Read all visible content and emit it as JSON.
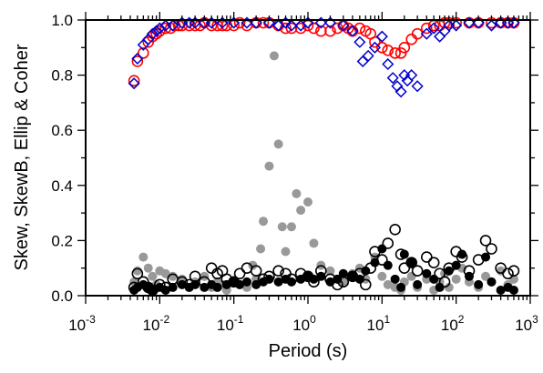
{
  "chart_data": {
    "type": "scatter",
    "xlabel": "Period (s)",
    "ylabel": "Skew, SkewB, Ellip & Coher",
    "xscale": "log",
    "xlim": [
      0.001,
      1000
    ],
    "ylim": [
      0,
      1.0
    ],
    "x_ticks": [
      {
        "base": "10",
        "exp": "-3"
      },
      {
        "base": "10",
        "exp": "-2"
      },
      {
        "base": "10",
        "exp": "-1"
      },
      {
        "base": "10",
        "exp": "0"
      },
      {
        "base": "10",
        "exp": "1"
      },
      {
        "base": "10",
        "exp": "2"
      },
      {
        "base": "10",
        "exp": "3"
      }
    ],
    "y_ticks": [
      "0.0",
      "0.2",
      "0.4",
      "0.6",
      "0.8",
      "1.0"
    ],
    "grid": false,
    "series": [
      {
        "marker": "open-circle",
        "color": "#ff0000",
        "x": [
          0.0045,
          0.005,
          0.006,
          0.007,
          0.008,
          0.009,
          0.01,
          0.012,
          0.014,
          0.016,
          0.018,
          0.02,
          0.025,
          0.03,
          0.035,
          0.04,
          0.05,
          0.06,
          0.07,
          0.08,
          0.1,
          0.12,
          0.15,
          0.2,
          0.25,
          0.3,
          0.4,
          0.5,
          0.6,
          0.8,
          1.0,
          1.2,
          1.5,
          2.0,
          2.5,
          3.0,
          3.5,
          4.0,
          5.0,
          6.0,
          7.0,
          8.0,
          10,
          12,
          15,
          18,
          20,
          25,
          30,
          40,
          50,
          60,
          70,
          80,
          100,
          150,
          200,
          300,
          400,
          500,
          600
        ],
        "y": [
          0.78,
          0.85,
          0.88,
          0.92,
          0.94,
          0.95,
          0.96,
          0.97,
          0.97,
          0.98,
          0.98,
          0.98,
          0.98,
          0.98,
          0.98,
          0.99,
          0.98,
          0.98,
          0.98,
          0.98,
          0.98,
          0.99,
          0.98,
          0.99,
          0.99,
          0.99,
          0.98,
          0.97,
          0.97,
          0.97,
          0.98,
          0.97,
          0.96,
          0.96,
          0.97,
          0.98,
          0.97,
          0.96,
          0.97,
          0.96,
          0.95,
          0.92,
          0.9,
          0.89,
          0.88,
          0.88,
          0.9,
          0.93,
          0.95,
          0.97,
          0.98,
          0.98,
          0.99,
          0.99,
          0.99,
          0.99,
          0.99,
          0.99,
          0.99,
          0.99,
          0.99
        ]
      },
      {
        "marker": "open-diamond",
        "color": "#0000cc",
        "x": [
          0.0045,
          0.005,
          0.006,
          0.007,
          0.008,
          0.009,
          0.01,
          0.012,
          0.015,
          0.02,
          0.025,
          0.03,
          0.04,
          0.05,
          0.07,
          0.1,
          0.15,
          0.2,
          0.3,
          0.4,
          0.5,
          0.6,
          0.8,
          1.0,
          1.5,
          2.0,
          3.0,
          4.0,
          5.0,
          5.5,
          6.5,
          8.0,
          10,
          12,
          14,
          16,
          18,
          20,
          22,
          25,
          30,
          40,
          50,
          60,
          70,
          80,
          100,
          150,
          200,
          300,
          400,
          500,
          600
        ],
        "y": [
          0.77,
          0.86,
          0.91,
          0.93,
          0.95,
          0.96,
          0.97,
          0.98,
          0.98,
          0.99,
          0.99,
          0.99,
          0.99,
          0.99,
          0.99,
          0.99,
          0.99,
          0.99,
          0.99,
          0.98,
          0.99,
          0.98,
          0.98,
          0.99,
          0.99,
          0.99,
          0.98,
          0.96,
          0.92,
          0.85,
          0.87,
          0.9,
          0.94,
          0.84,
          0.79,
          0.76,
          0.74,
          0.8,
          0.78,
          0.8,
          0.76,
          0.95,
          0.97,
          0.94,
          0.96,
          0.98,
          0.98,
          0.99,
          0.99,
          0.98,
          0.99,
          0.99,
          0.99
        ]
      },
      {
        "marker": "filled-circle",
        "color": "#999999",
        "x": [
          0.0045,
          0.005,
          0.006,
          0.007,
          0.008,
          0.009,
          0.01,
          0.012,
          0.015,
          0.02,
          0.025,
          0.03,
          0.04,
          0.05,
          0.06,
          0.07,
          0.08,
          0.1,
          0.12,
          0.15,
          0.18,
          0.2,
          0.23,
          0.25,
          0.3,
          0.35,
          0.4,
          0.45,
          0.5,
          0.6,
          0.7,
          0.8,
          1.0,
          1.2,
          1.5,
          2.0,
          2.5,
          3.0,
          4.0,
          5.0,
          6.0,
          8.0,
          10,
          12,
          15,
          18,
          20,
          25,
          30,
          40,
          50,
          60,
          70,
          80,
          100,
          120,
          150,
          200,
          250,
          300,
          400,
          500,
          600
        ],
        "y": [
          0.05,
          0.09,
          0.14,
          0.1,
          0.07,
          0.04,
          0.09,
          0.08,
          0.07,
          0.06,
          0.03,
          0.05,
          0.07,
          0.03,
          0.05,
          0.04,
          0.02,
          0.05,
          0.04,
          0.03,
          0.11,
          0.06,
          0.17,
          0.27,
          0.47,
          0.87,
          0.55,
          0.25,
          0.16,
          0.25,
          0.37,
          0.31,
          0.34,
          0.19,
          0.11,
          0.09,
          0.06,
          0.05,
          0.08,
          0.1,
          0.06,
          0.14,
          0.07,
          0.04,
          0.03,
          0.02,
          0.05,
          0.07,
          0.03,
          0.06,
          0.02,
          0.05,
          0.08,
          0.03,
          0.06,
          0.1,
          0.05,
          0.03,
          0.07,
          0.05,
          0.09,
          0.04,
          0.06
        ]
      },
      {
        "marker": "open-circle",
        "color": "#000000",
        "x": [
          0.0045,
          0.005,
          0.006,
          0.007,
          0.008,
          0.01,
          0.012,
          0.015,
          0.02,
          0.025,
          0.03,
          0.04,
          0.05,
          0.06,
          0.07,
          0.08,
          0.1,
          0.12,
          0.15,
          0.2,
          0.25,
          0.3,
          0.4,
          0.5,
          0.6,
          0.8,
          1.0,
          1.2,
          1.5,
          2.0,
          2.5,
          3.0,
          4.0,
          5.0,
          6.0,
          7.0,
          8.0,
          10,
          12,
          15,
          18,
          20,
          25,
          30,
          40,
          50,
          60,
          70,
          80,
          100,
          120,
          150,
          200,
          250,
          300,
          400,
          500,
          600
        ],
        "y": [
          0.03,
          0.08,
          0.05,
          0.03,
          0.02,
          0.04,
          0.03,
          0.06,
          0.05,
          0.04,
          0.07,
          0.05,
          0.1,
          0.08,
          0.09,
          0.06,
          0.05,
          0.08,
          0.1,
          0.09,
          0.06,
          0.07,
          0.09,
          0.08,
          0.06,
          0.08,
          0.07,
          0.05,
          0.09,
          0.06,
          0.04,
          0.05,
          0.07,
          0.08,
          0.04,
          0.1,
          0.16,
          0.13,
          0.19,
          0.24,
          0.15,
          0.1,
          0.12,
          0.09,
          0.14,
          0.12,
          0.08,
          0.05,
          0.1,
          0.16,
          0.14,
          0.09,
          0.13,
          0.2,
          0.17,
          0.1,
          0.08,
          0.09
        ]
      },
      {
        "marker": "filled-circle",
        "color": "#000000",
        "x": [
          0.0045,
          0.005,
          0.006,
          0.007,
          0.008,
          0.01,
          0.012,
          0.015,
          0.02,
          0.025,
          0.03,
          0.04,
          0.05,
          0.06,
          0.08,
          0.1,
          0.12,
          0.15,
          0.2,
          0.25,
          0.3,
          0.4,
          0.5,
          0.6,
          0.8,
          1.0,
          1.2,
          1.5,
          2.0,
          2.5,
          3.0,
          4.0,
          5.0,
          6.0,
          8.0,
          10,
          12,
          15,
          18,
          20,
          25,
          30,
          40,
          50,
          60,
          80,
          100,
          120,
          150,
          200,
          250,
          300,
          400,
          500,
          600
        ],
        "y": [
          0.02,
          0.03,
          0.04,
          0.03,
          0.02,
          0.03,
          0.02,
          0.03,
          0.04,
          0.03,
          0.04,
          0.03,
          0.04,
          0.03,
          0.04,
          0.05,
          0.04,
          0.05,
          0.04,
          0.05,
          0.06,
          0.05,
          0.06,
          0.05,
          0.06,
          0.07,
          0.06,
          0.07,
          0.05,
          0.06,
          0.08,
          0.07,
          0.06,
          0.09,
          0.12,
          0.17,
          0.11,
          0.06,
          0.03,
          0.15,
          0.12,
          0.04,
          0.08,
          0.06,
          0.03,
          0.09,
          0.11,
          0.15,
          0.07,
          0.04,
          0.14,
          0.05,
          0.02,
          0.03,
          0.02
        ]
      }
    ]
  }
}
